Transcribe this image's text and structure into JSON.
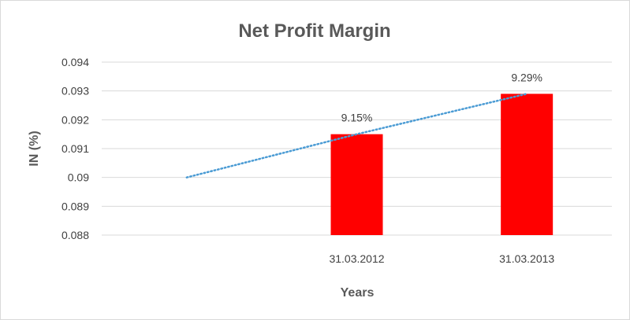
{
  "chart_data": {
    "type": "bar",
    "title": "Net Profit Margin",
    "xlabel": "Years",
    "ylabel": "IN (%)",
    "categories": [
      "",
      "31.03.2012",
      "31.03.2013"
    ],
    "values": [
      null,
      0.0915,
      0.0929
    ],
    "data_labels": [
      "",
      "9.15%",
      "9.29%"
    ],
    "ylim": [
      0.088,
      0.094
    ],
    "yticks": [
      "0.088",
      "0.089",
      "0.09",
      "0.091",
      "0.092",
      "0.093",
      "0.094"
    ],
    "trendline": {
      "type": "linear",
      "style": "dotted",
      "values": [
        0.09,
        0.0915,
        0.0929
      ]
    },
    "grid": true,
    "legend": "none",
    "colors": {
      "bar": "#ff0000",
      "trendline": "#4a9bd4",
      "grid": "#d9d9d9"
    }
  }
}
